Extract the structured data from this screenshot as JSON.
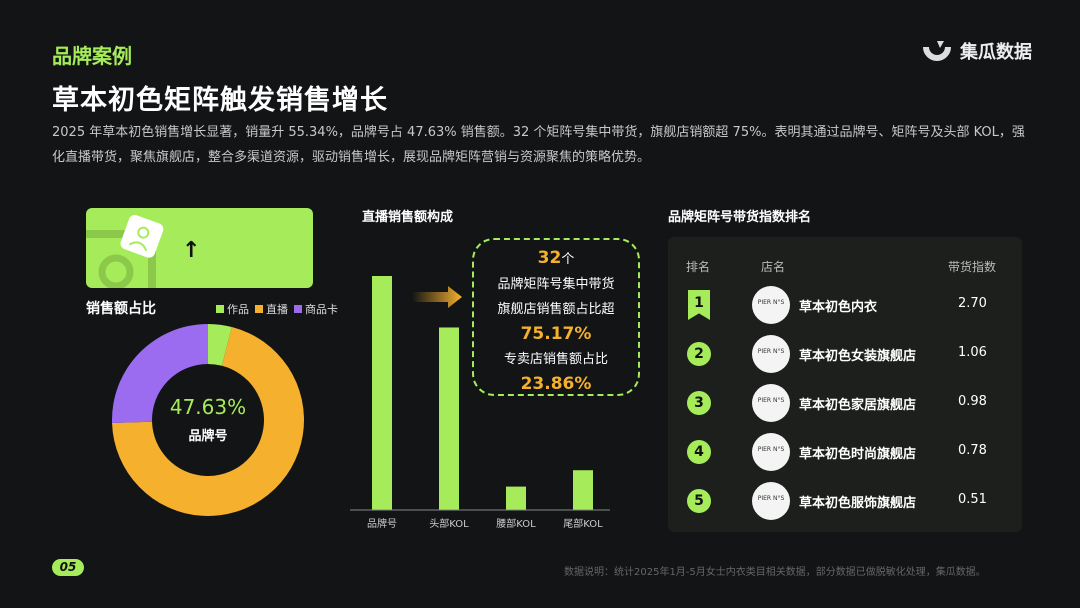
{
  "header": {
    "tag": "品牌案例",
    "brand": "集瓜数据",
    "title": "草本初色矩阵触发销售增长",
    "description": "2025 年草本初色销售增长显著，销量升 55.34%，品牌号占 47.63% 销售额。32 个矩阵号集中带货，旗舰店销额超 75%。表明其通过品牌号、矩阵号及头部 KOL，强化直播带货，聚焦旗舰店，整合多渠道资源，驱动销售增长，展现品牌矩阵营销与资源聚焦的策略优势。"
  },
  "banner": {
    "arrow": "↑"
  },
  "chart_data": [
    {
      "type": "pie",
      "title": "销售额占比",
      "categories": [
        "作品",
        "直播",
        "商品卡"
      ],
      "values": [
        4,
        70.5,
        25.5
      ],
      "colors": [
        "#a6ec5a",
        "#f5b12e",
        "#9b6cf0"
      ],
      "center_value": "47.63%",
      "center_label": "品牌号",
      "legend": "top-right"
    },
    {
      "type": "bar",
      "title": "直播销售额构成",
      "categories": [
        "品牌号",
        "头部KOL",
        "腰部KOL",
        "尾部KOL"
      ],
      "values": [
        100,
        78,
        10,
        17
      ],
      "color": "#a6ec5a"
    }
  ],
  "callout": {
    "count": "32",
    "count_unit": "个",
    "line1": "品牌矩阵号集中带货",
    "line2": "旗舰店销售额占比超",
    "value1": "75.17%",
    "line3": "专卖店销售额占比",
    "value2": "23.86%"
  },
  "ranking": {
    "title": "品牌矩阵号带货指数排名",
    "headers": [
      "排名",
      "店名",
      "带货指数"
    ],
    "avatar_text": "PIER N°S",
    "rows": [
      {
        "rank": "1",
        "name": "草本初色内衣",
        "index": "2.70"
      },
      {
        "rank": "2",
        "name": "草本初色女装旗舰店",
        "index": "1.06"
      },
      {
        "rank": "3",
        "name": "草本初色家居旗舰店",
        "index": "0.98"
      },
      {
        "rank": "4",
        "name": "草本初色时尚旗舰店",
        "index": "0.78"
      },
      {
        "rank": "5",
        "name": "草本初色服饰旗舰店",
        "index": "0.51"
      }
    ]
  },
  "footer": {
    "page": "05",
    "note": "数据说明：统计2025年1月-5月女士内衣类目相关数据，部分数据已做脱敏化处理，集瓜数据。"
  }
}
